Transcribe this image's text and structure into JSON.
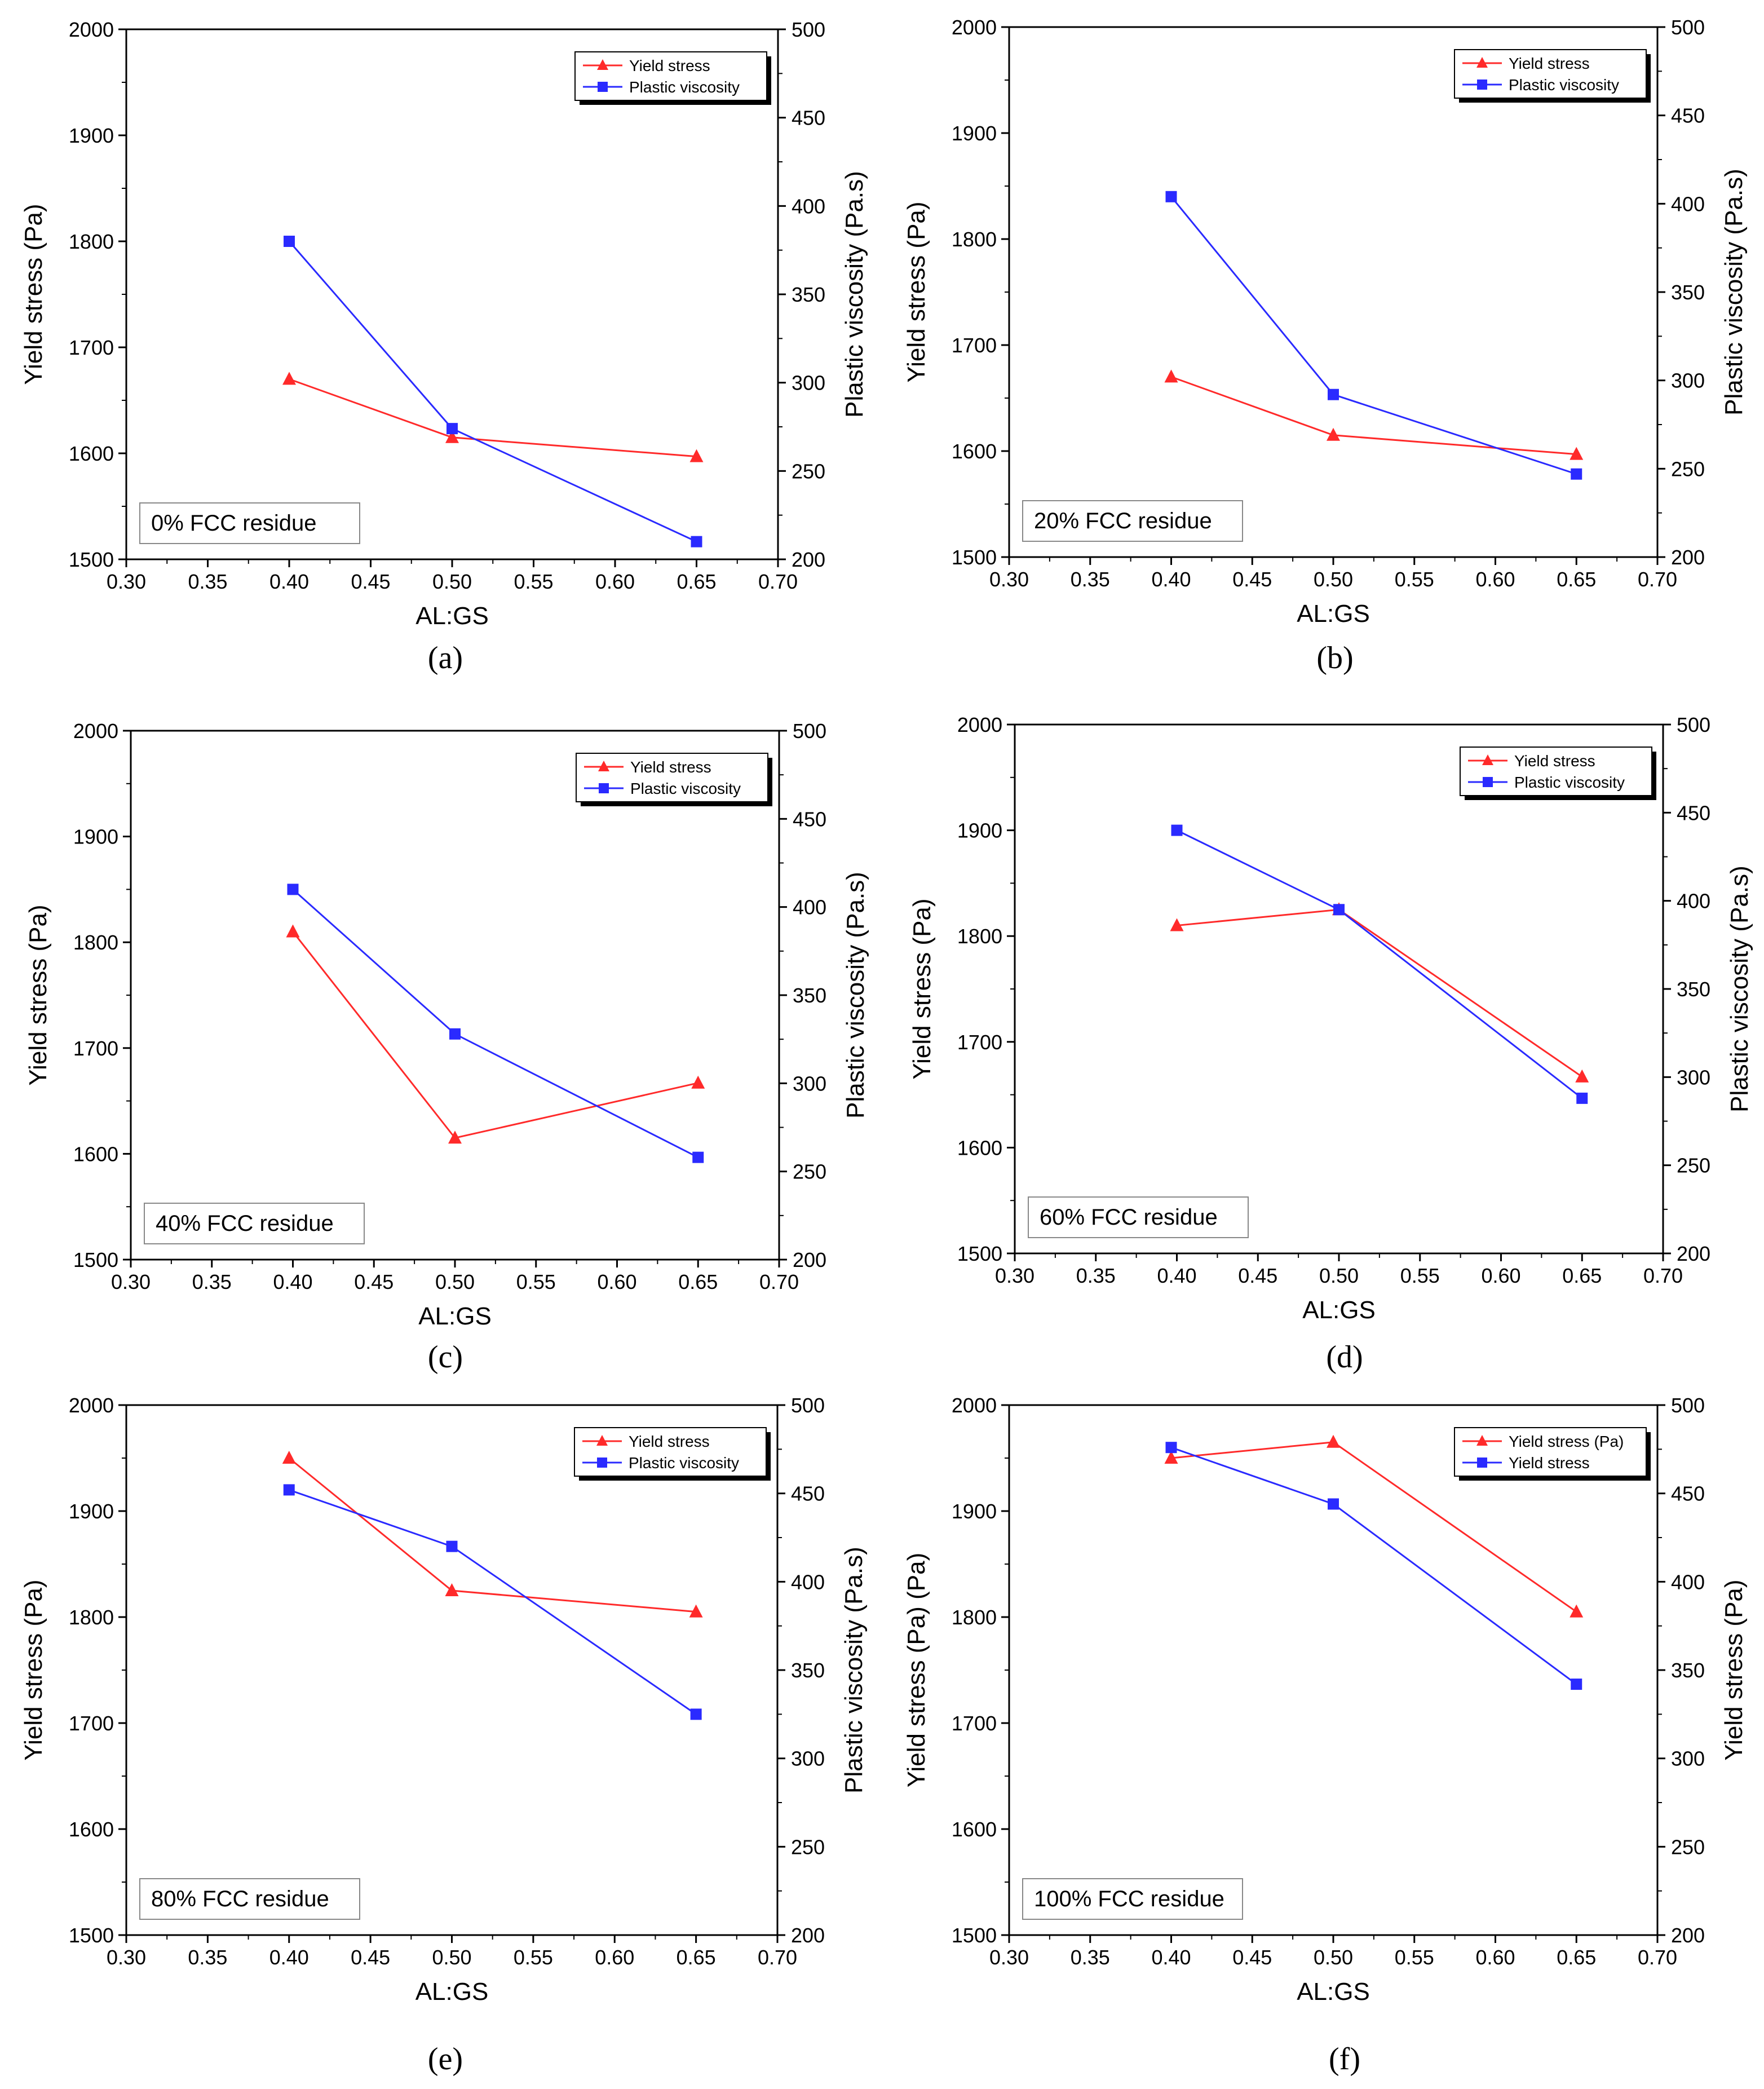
{
  "figure": {
    "colors": {
      "yield": "#ff2a2a",
      "plastic": "#2a2aff",
      "axis": "#000000",
      "frame": "#888888"
    }
  },
  "chart_data": [
    {
      "type": "line",
      "caption": "(a)",
      "panel_label": "0% FCC residue",
      "xlabel": "AL:GS",
      "ylabel": "Yield stress (Pa)",
      "y2label": "Plastic viscosity (Pa.s)",
      "xlim": [
        0.3,
        0.7
      ],
      "ylim": [
        1500,
        2000
      ],
      "y2lim": [
        200,
        500
      ],
      "x_ticks": [
        "0.30",
        "0.35",
        "0.40",
        "0.45",
        "0.50",
        "0.55",
        "0.60",
        "0.65",
        "0.70"
      ],
      "y_ticks": [
        "1500",
        "1600",
        "1700",
        "1800",
        "1900",
        "2000"
      ],
      "y2_ticks": [
        "200",
        "250",
        "300",
        "350",
        "400",
        "450",
        "500"
      ],
      "series": [
        {
          "name": "Yield stress",
          "axis": "left",
          "marker": "triangle",
          "color": "#ff2a2a",
          "x": [
            0.4,
            0.5,
            0.65
          ],
          "y": [
            1670,
            1615,
            1597
          ]
        },
        {
          "name": "Plastic viscosity",
          "axis": "right",
          "marker": "square",
          "color": "#2a2aff",
          "x": [
            0.4,
            0.5,
            0.65
          ],
          "y": [
            380,
            274,
            210
          ]
        }
      ]
    },
    {
      "type": "line",
      "caption": "(b)",
      "panel_label": "20% FCC residue",
      "xlabel": "AL:GS",
      "ylabel": "Yield stress (Pa)",
      "y2label": "Plastic viscosity (Pa.s)",
      "xlim": [
        0.3,
        0.7
      ],
      "ylim": [
        1500,
        2000
      ],
      "y2lim": [
        200,
        500
      ],
      "x_ticks": [
        "0.30",
        "0.35",
        "0.40",
        "0.45",
        "0.50",
        "0.55",
        "0.60",
        "0.65",
        "0.70"
      ],
      "y_ticks": [
        "1500",
        "1600",
        "1700",
        "1800",
        "1900",
        "2000"
      ],
      "y2_ticks": [
        "200",
        "250",
        "300",
        "350",
        "400",
        "450",
        "500"
      ],
      "series": [
        {
          "name": "Yield stress",
          "axis": "left",
          "marker": "triangle",
          "color": "#ff2a2a",
          "x": [
            0.4,
            0.5,
            0.65
          ],
          "y": [
            1670,
            1615,
            1597
          ]
        },
        {
          "name": "Plastic viscosity",
          "axis": "right",
          "marker": "square",
          "color": "#2a2aff",
          "x": [
            0.4,
            0.5,
            0.65
          ],
          "y": [
            404,
            292,
            247
          ]
        }
      ]
    },
    {
      "type": "line",
      "caption": "(c)",
      "panel_label": "40% FCC residue",
      "xlabel": "AL:GS",
      "ylabel": "Yield stress (Pa)",
      "y2label": "Plastic viscosity (Pa.s)",
      "xlim": [
        0.3,
        0.7
      ],
      "ylim": [
        1500,
        2000
      ],
      "y2lim": [
        200,
        500
      ],
      "x_ticks": [
        "0.30",
        "0.35",
        "0.40",
        "0.45",
        "0.50",
        "0.55",
        "0.60",
        "0.65",
        "0.70"
      ],
      "y_ticks": [
        "1500",
        "1600",
        "1700",
        "1800",
        "1900",
        "2000"
      ],
      "y2_ticks": [
        "200",
        "250",
        "300",
        "350",
        "400",
        "450",
        "500"
      ],
      "series": [
        {
          "name": "Yield stress",
          "axis": "left",
          "marker": "triangle",
          "color": "#ff2a2a",
          "x": [
            0.4,
            0.5,
            0.65
          ],
          "y": [
            1810,
            1615,
            1667
          ]
        },
        {
          "name": "Plastic viscosity",
          "axis": "right",
          "marker": "square",
          "color": "#2a2aff",
          "x": [
            0.4,
            0.5,
            0.65
          ],
          "y": [
            410,
            328,
            258
          ]
        }
      ]
    },
    {
      "type": "line",
      "caption": "(d)",
      "panel_label": "60% FCC residue",
      "xlabel": "AL:GS",
      "ylabel": "Yield stress (Pa)",
      "y2label": "Plastic viscosity (Pa.s)",
      "xlim": [
        0.3,
        0.7
      ],
      "ylim": [
        1500,
        2000
      ],
      "y2lim": [
        200,
        500
      ],
      "x_ticks": [
        "0.30",
        "0.35",
        "0.40",
        "0.45",
        "0.50",
        "0.55",
        "0.60",
        "0.65",
        "0.70"
      ],
      "y_ticks": [
        "1500",
        "1600",
        "1700",
        "1800",
        "1900",
        "2000"
      ],
      "y2_ticks": [
        "200",
        "250",
        "300",
        "350",
        "400",
        "450",
        "500"
      ],
      "series": [
        {
          "name": "Yield stress",
          "axis": "left",
          "marker": "triangle",
          "color": "#ff2a2a",
          "x": [
            0.4,
            0.5,
            0.65
          ],
          "y": [
            1810,
            1825,
            1667
          ]
        },
        {
          "name": "Plastic viscosity",
          "axis": "right",
          "marker": "square",
          "color": "#2a2aff",
          "x": [
            0.4,
            0.5,
            0.65
          ],
          "y": [
            440,
            395,
            288
          ]
        }
      ]
    },
    {
      "type": "line",
      "caption": "(e)",
      "panel_label": "80% FCC residue",
      "xlabel": "AL:GS",
      "ylabel": "Yield stress (Pa)",
      "y2label": "Plastic viscosity (Pa.s)",
      "xlim": [
        0.3,
        0.7
      ],
      "ylim": [
        1500,
        2000
      ],
      "y2lim": [
        200,
        500
      ],
      "x_ticks": [
        "0.30",
        "0.35",
        "0.40",
        "0.45",
        "0.50",
        "0.55",
        "0.60",
        "0.65",
        "0.70"
      ],
      "y_ticks": [
        "1500",
        "1600",
        "1700",
        "1800",
        "1900",
        "2000"
      ],
      "y2_ticks": [
        "200",
        "250",
        "300",
        "350",
        "400",
        "450",
        "500"
      ],
      "series": [
        {
          "name": "Yield stress",
          "axis": "left",
          "marker": "triangle",
          "color": "#ff2a2a",
          "x": [
            0.4,
            0.5,
            0.65
          ],
          "y": [
            1950,
            1825,
            1805
          ]
        },
        {
          "name": "Plastic viscosity",
          "axis": "right",
          "marker": "square",
          "color": "#2a2aff",
          "x": [
            0.4,
            0.5,
            0.65
          ],
          "y": [
            452,
            420,
            325
          ]
        }
      ]
    },
    {
      "type": "line",
      "caption": "(f)",
      "panel_label": "100% FCC residue",
      "xlabel": "AL:GS",
      "ylabel": "Yield stress (Pa) (Pa)",
      "y2label": "Yield stress (Pa)",
      "xlim": [
        0.3,
        0.7
      ],
      "ylim": [
        1500,
        2000
      ],
      "y2lim": [
        200,
        500
      ],
      "x_ticks": [
        "0.30",
        "0.35",
        "0.40",
        "0.45",
        "0.50",
        "0.55",
        "0.60",
        "0.65",
        "0.70"
      ],
      "y_ticks": [
        "1500",
        "1600",
        "1700",
        "1800",
        "1900",
        "2000"
      ],
      "y2_ticks": [
        "200",
        "250",
        "300",
        "350",
        "400",
        "450",
        "500"
      ],
      "series": [
        {
          "name": "Yield stress (Pa)",
          "axis": "left",
          "marker": "triangle",
          "color": "#ff2a2a",
          "x": [
            0.4,
            0.5,
            0.65
          ],
          "y": [
            1950,
            1965,
            1805
          ]
        },
        {
          "name": "Yield stress",
          "axis": "right",
          "marker": "square",
          "color": "#2a2aff",
          "x": [
            0.4,
            0.5,
            0.65
          ],
          "y": [
            476,
            444,
            342
          ]
        }
      ]
    }
  ]
}
